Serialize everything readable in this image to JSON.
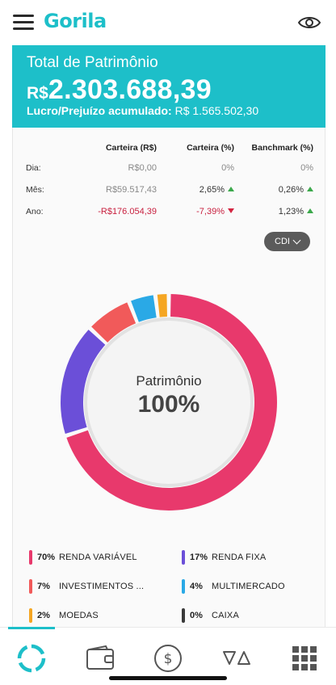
{
  "header": {
    "logo": "Gorila",
    "menu_icon": "hamburger-menu-icon",
    "visibility_icon": "eye-icon"
  },
  "summary": {
    "title": "Total de Patrimônio",
    "currency": "R$",
    "total": "2.303.688,39",
    "profit_label": "Lucro/Prejuízo acumulado:",
    "profit_value": "R$ 1.565.502,30"
  },
  "performance": {
    "headers": [
      "Carteira (R$)",
      "Carteira (%)",
      "Banchmark (%)"
    ],
    "rows": [
      {
        "label": "Dia:",
        "value": "R$0,00",
        "pct": "0%",
        "pct_trend": "none",
        "bench": "0%",
        "bench_trend": "none"
      },
      {
        "label": "Mês:",
        "value": "R$59.517,43",
        "pct": "2,65%",
        "pct_trend": "up",
        "bench": "0,26%",
        "bench_trend": "up"
      },
      {
        "label": "Ano:",
        "value": "-R$176.054,39",
        "pct": "-7,39%",
        "pct_trend": "down",
        "bench": "1,23%",
        "bench_trend": "up"
      }
    ],
    "benchmark_select": "CDI"
  },
  "allocation": {
    "center_label": "Patrimônio",
    "center_value": "100%",
    "items": [
      {
        "pct": "70%",
        "value": 70,
        "name": "RENDA VARIÁVEL",
        "color": "#e8396c"
      },
      {
        "pct": "17%",
        "value": 17,
        "name": "RENDA FIXA",
        "color": "#6b4fd8"
      },
      {
        "pct": "7%",
        "value": 7,
        "name": "INVESTIMENTOS ...",
        "color": "#f15a5a"
      },
      {
        "pct": "4%",
        "value": 4,
        "name": "MULTIMERCADO",
        "color": "#2aa9e6"
      },
      {
        "pct": "2%",
        "value": 2,
        "name": "MOEDAS",
        "color": "#f5a623"
      },
      {
        "pct": "0%",
        "value": 0,
        "name": "CAIXA",
        "color": "#3a3a3a"
      }
    ]
  },
  "bottom_nav": {
    "items": [
      "portfolio-icon",
      "wallet-icon",
      "dollar-icon",
      "trading-icon",
      "apps-grid-icon"
    ],
    "active": "portfolio-icon",
    "accent": "#1dbfc9"
  },
  "colors": {
    "brand": "#1dbfc9",
    "positive": "#3aa84a",
    "negative": "#c8203f"
  }
}
